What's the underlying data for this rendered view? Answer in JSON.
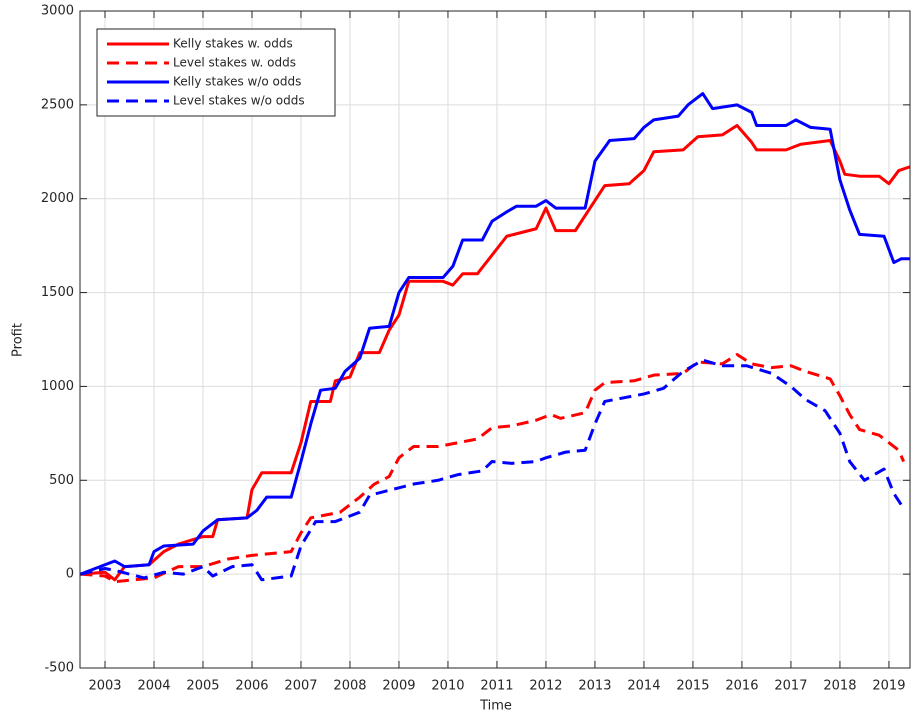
{
  "chart_data": {
    "type": "line",
    "xlabel": "Time",
    "ylabel": "Profit",
    "xlim": [
      2002.49,
      2019.43
    ],
    "xticks": [
      2003,
      2004,
      2005,
      2006,
      2007,
      2008,
      2009,
      2010,
      2011,
      2012,
      2013,
      2014,
      2015,
      2016,
      2017,
      2018,
      2019
    ],
    "ylim": [
      -500,
      3000
    ],
    "yticks": [
      -500,
      0,
      500,
      1000,
      1500,
      2000,
      2500,
      3000
    ],
    "grid": true,
    "legend": "upper left",
    "series": [
      {
        "name": "Kelly stakes w. odds",
        "color": "#ff0000",
        "linestyle": "solid",
        "x": [
          2002.5,
          2003.0,
          2003.2,
          2003.4,
          2003.9,
          2004.2,
          2004.5,
          2005.0,
          2005.2,
          2005.3,
          2005.9,
          2006.0,
          2006.2,
          2006.8,
          2007.0,
          2007.2,
          2007.6,
          2007.7,
          2008.0,
          2008.2,
          2008.6,
          2008.8,
          2009.0,
          2009.2,
          2009.9,
          2010.1,
          2010.3,
          2010.6,
          2010.9,
          2011.2,
          2011.5,
          2011.8,
          2012.0,
          2012.2,
          2012.6,
          2012.9,
          2013.2,
          2013.7,
          2014.0,
          2014.2,
          2014.8,
          2015.1,
          2015.6,
          2015.9,
          2016.2,
          2016.3,
          2016.9,
          2017.2,
          2017.5,
          2017.8,
          2018.0,
          2018.1,
          2018.4,
          2018.8,
          2019.0,
          2019.2,
          2019.43
        ],
        "values": [
          0,
          10,
          -30,
          40,
          50,
          120,
          160,
          200,
          200,
          290,
          300,
          450,
          540,
          540,
          700,
          920,
          920,
          1030,
          1050,
          1180,
          1180,
          1300,
          1380,
          1560,
          1560,
          1540,
          1600,
          1600,
          1700,
          1800,
          1820,
          1840,
          1950,
          1830,
          1830,
          1950,
          2070,
          2080,
          2150,
          2250,
          2260,
          2330,
          2340,
          2390,
          2300,
          2260,
          2260,
          2290,
          2300,
          2310,
          2200,
          2130,
          2120,
          2120,
          2080,
          2150,
          2170
        ]
      },
      {
        "name": "Level stakes w. odds",
        "color": "#ff0000",
        "linestyle": "dashed",
        "x": [
          2002.5,
          2003.0,
          2003.2,
          2004.0,
          2004.5,
          2005.0,
          2005.5,
          2006.0,
          2006.8,
          2007.0,
          2007.2,
          2007.8,
          2008.2,
          2008.5,
          2008.8,
          2009.0,
          2009.3,
          2009.8,
          2010.2,
          2010.6,
          2010.9,
          2011.3,
          2011.8,
          2012.1,
          2012.3,
          2012.8,
          2013.0,
          2013.2,
          2013.8,
          2014.2,
          2014.8,
          2015.1,
          2015.6,
          2015.9,
          2016.2,
          2016.6,
          2017.0,
          2017.3,
          2017.8,
          2018.0,
          2018.2,
          2018.4,
          2018.8,
          2019.0,
          2019.2,
          2019.3
        ],
        "values": [
          0,
          -10,
          -40,
          -20,
          40,
          40,
          80,
          100,
          120,
          220,
          300,
          330,
          410,
          480,
          520,
          620,
          680,
          680,
          700,
          720,
          780,
          790,
          820,
          850,
          830,
          860,
          980,
          1020,
          1030,
          1060,
          1070,
          1130,
          1120,
          1170,
          1120,
          1100,
          1110,
          1080,
          1040,
          950,
          850,
          770,
          740,
          700,
          660,
          600
        ]
      },
      {
        "name": "Kelly stakes w/o odds",
        "color": "#0000ff",
        "linestyle": "solid",
        "x": [
          2002.5,
          2003.0,
          2003.2,
          2003.4,
          2003.9,
          2004.0,
          2004.2,
          2004.8,
          2005.0,
          2005.3,
          2005.9,
          2006.1,
          2006.3,
          2006.8,
          2007.0,
          2007.2,
          2007.4,
          2007.7,
          2007.9,
          2008.2,
          2008.4,
          2008.8,
          2009.0,
          2009.2,
          2009.9,
          2010.1,
          2010.3,
          2010.7,
          2010.9,
          2011.2,
          2011.4,
          2011.8,
          2012.0,
          2012.2,
          2012.8,
          2013.0,
          2013.3,
          2013.8,
          2014.0,
          2014.2,
          2014.7,
          2014.9,
          2015.2,
          2015.4,
          2015.9,
          2016.2,
          2016.3,
          2016.9,
          2017.1,
          2017.4,
          2017.8,
          2018.0,
          2018.2,
          2018.4,
          2018.9,
          2019.1,
          2019.25,
          2019.43
        ],
        "values": [
          0,
          50,
          70,
          40,
          50,
          120,
          150,
          160,
          230,
          290,
          300,
          340,
          410,
          410,
          600,
          800,
          980,
          990,
          1080,
          1150,
          1310,
          1320,
          1500,
          1580,
          1580,
          1640,
          1780,
          1780,
          1880,
          1930,
          1960,
          1960,
          1990,
          1950,
          1950,
          2200,
          2310,
          2320,
          2380,
          2420,
          2440,
          2500,
          2560,
          2480,
          2500,
          2460,
          2390,
          2390,
          2420,
          2380,
          2370,
          2100,
          1940,
          1810,
          1800,
          1660,
          1680,
          1680
        ]
      },
      {
        "name": "Level stakes w/o odds",
        "color": "#0000ff",
        "linestyle": "dashed",
        "x": [
          2002.5,
          2003.0,
          2003.2,
          2003.8,
          2004.2,
          2004.6,
          2005.0,
          2005.2,
          2005.6,
          2006.0,
          2006.2,
          2006.8,
          2007.0,
          2007.3,
          2007.7,
          2008.2,
          2008.4,
          2009.0,
          2009.3,
          2009.8,
          2010.2,
          2010.7,
          2010.9,
          2011.3,
          2011.8,
          2012.0,
          2012.4,
          2012.8,
          2013.0,
          2013.2,
          2013.6,
          2014.0,
          2014.4,
          2014.8,
          2015.2,
          2015.6,
          2016.1,
          2016.6,
          2017.0,
          2017.3,
          2017.7,
          2018.0,
          2018.2,
          2018.5,
          2018.9,
          2019.1,
          2019.3
        ],
        "values": [
          0,
          30,
          20,
          -20,
          10,
          0,
          40,
          -10,
          40,
          50,
          -30,
          -10,
          150,
          280,
          280,
          330,
          420,
          460,
          480,
          500,
          530,
          550,
          600,
          590,
          600,
          620,
          650,
          660,
          800,
          920,
          940,
          960,
          990,
          1080,
          1140,
          1110,
          1110,
          1070,
          1000,
          930,
          870,
          750,
          600,
          500,
          560,
          430,
          350
        ]
      }
    ]
  }
}
